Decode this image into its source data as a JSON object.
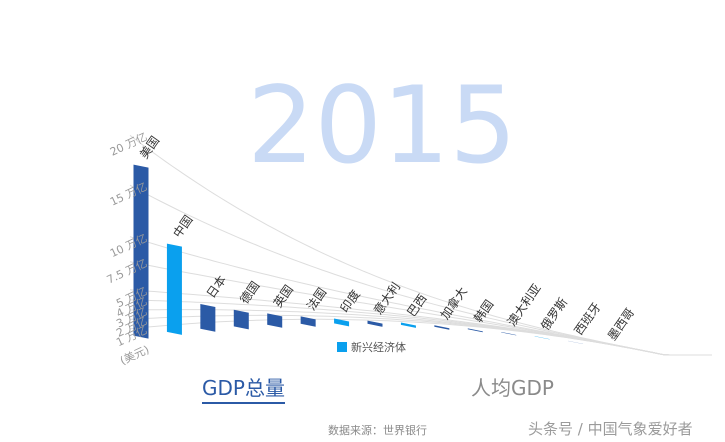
{
  "chart_data": {
    "type": "bar",
    "title": "2015",
    "categories": [
      "美国",
      "中国",
      "日本",
      "德国",
      "英国",
      "法国",
      "印度",
      "意大利",
      "巴西",
      "加拿大",
      "韩国",
      "澳大利亚",
      "俄罗斯",
      "西班牙",
      "墨西哥"
    ],
    "values": [
      18.0,
      11.0,
      4.1,
      3.4,
      2.9,
      2.4,
      2.1,
      1.8,
      1.8,
      1.55,
      1.4,
      1.35,
      1.3,
      1.2,
      1.15
    ],
    "emerging": [
      false,
      true,
      false,
      false,
      false,
      false,
      true,
      false,
      true,
      false,
      false,
      false,
      true,
      false,
      true
    ],
    "y_ticks": [
      {
        "value": 1,
        "label": "1 万亿"
      },
      {
        "value": 2,
        "label": "2 万亿"
      },
      {
        "value": 3,
        "label": "3 万亿"
      },
      {
        "value": 4,
        "label": "4 万亿"
      },
      {
        "value": 5,
        "label": "5 万亿"
      },
      {
        "value": 7.5,
        "label": "7.5 万亿"
      },
      {
        "value": 10,
        "label": "10 万亿"
      },
      {
        "value": 15,
        "label": "15 万亿"
      },
      {
        "value": 20,
        "label": "20 万亿"
      }
    ],
    "unit_label": "(美元)",
    "legend": [
      {
        "name": "新兴经济体",
        "color": "#0aa0ee"
      }
    ],
    "legend_position": "bottom-center",
    "colors": {
      "default": "#2b5aa6",
      "emerging": "#0aa0ee",
      "watermark_year": "#c9daf5",
      "grid": "#dddddd"
    }
  },
  "tabs": {
    "total": "GDP总量",
    "per_capita": "人均GDP"
  },
  "source": "数据来源：世界银行",
  "watermark": "头条号 / 中国气象爱好者"
}
